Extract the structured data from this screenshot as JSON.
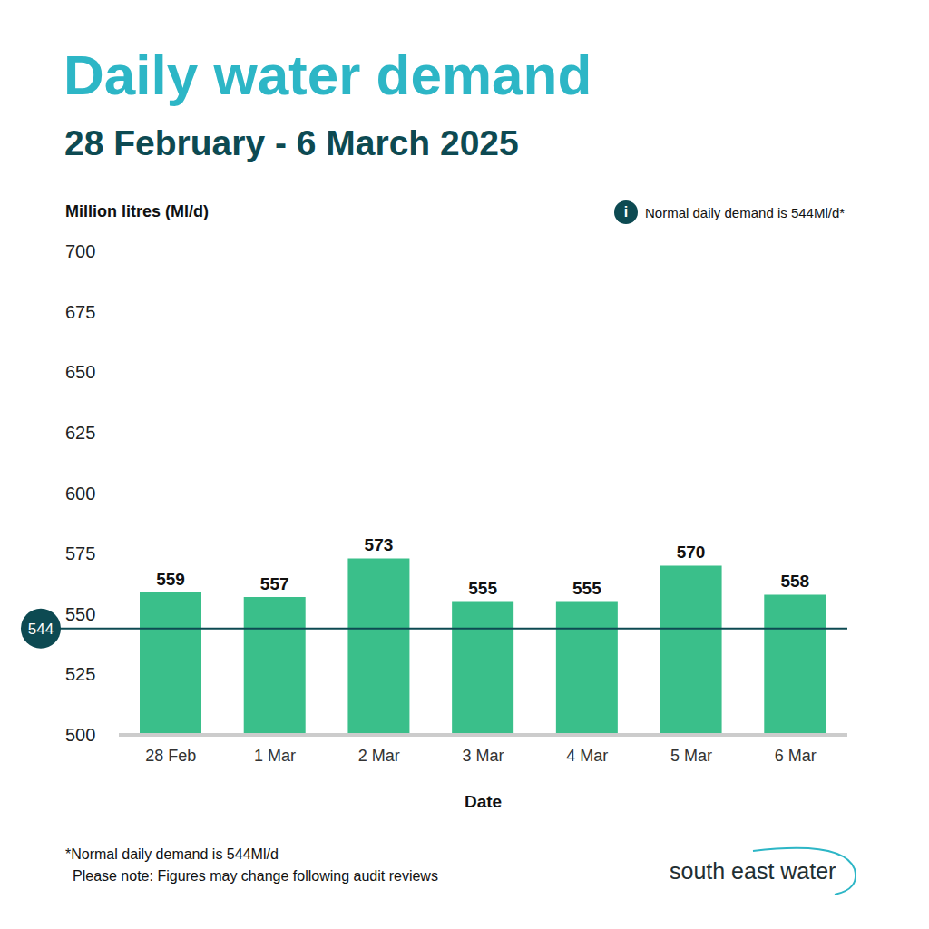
{
  "chart_data": {
    "type": "bar",
    "title": "Daily water demand",
    "subtitle": "28 February - 6 March 2025",
    "y_label": "Million litres (Ml/d)",
    "x_label": "Date",
    "categories": [
      "28 Feb",
      "1 Mar",
      "2 Mar",
      "3 Mar",
      "4 Mar",
      "5 Mar",
      "6 Mar"
    ],
    "values": [
      559,
      557,
      573,
      555,
      555,
      570,
      558
    ],
    "color": "#3abf8a",
    "ylim": [
      500,
      700
    ],
    "yticks": [
      500,
      525,
      550,
      575,
      600,
      625,
      650,
      675,
      700
    ],
    "data_labels": true,
    "grid": false,
    "reference_line": {
      "value": 544,
      "label": "544"
    },
    "note_icon": "i",
    "note": "Normal daily demand is 544Ml/d*",
    "footnotes": [
      "*Normal daily demand is 544Ml/d",
      "Please note: Figures may change following audit reviews"
    ],
    "brand": "south east water"
  }
}
